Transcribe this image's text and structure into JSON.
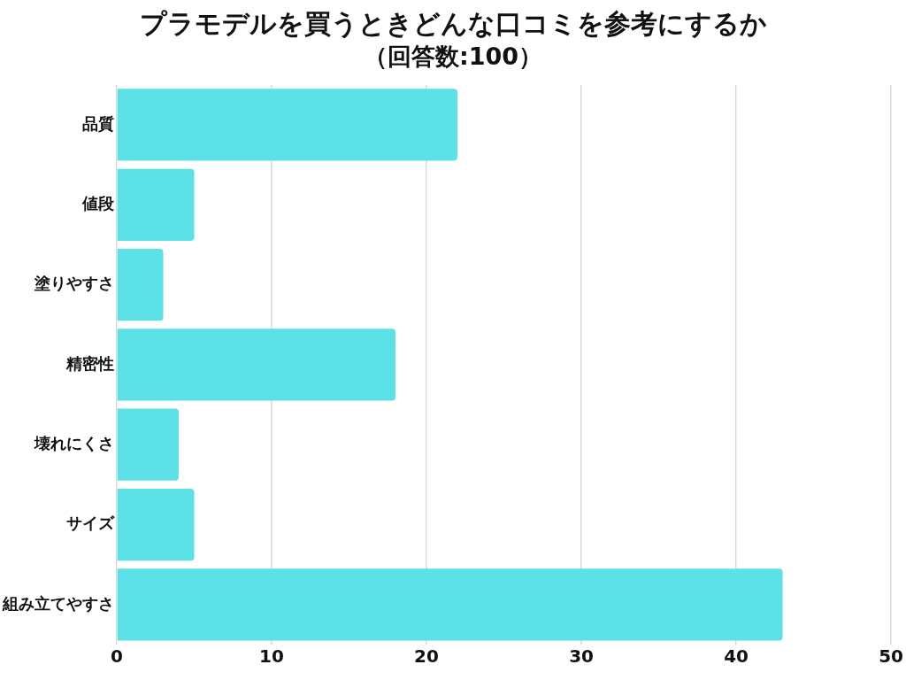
{
  "chart_data": {
    "type": "bar",
    "orientation": "horizontal",
    "title": "プラモデルを買うときどんな口コミを参考にするか",
    "subtitle": "（回答数:100）",
    "categories": [
      "品質",
      "値段",
      "塗りやすさ",
      "精密性",
      "壊れにくさ",
      "サイズ",
      "組み立てやすさ"
    ],
    "values": [
      22,
      5,
      3,
      18,
      4,
      5,
      43
    ],
    "color": "#5ce1e6",
    "xlim": [
      0,
      50
    ],
    "xticks": [
      0,
      10,
      20,
      30,
      40,
      50
    ],
    "grid": "x"
  }
}
